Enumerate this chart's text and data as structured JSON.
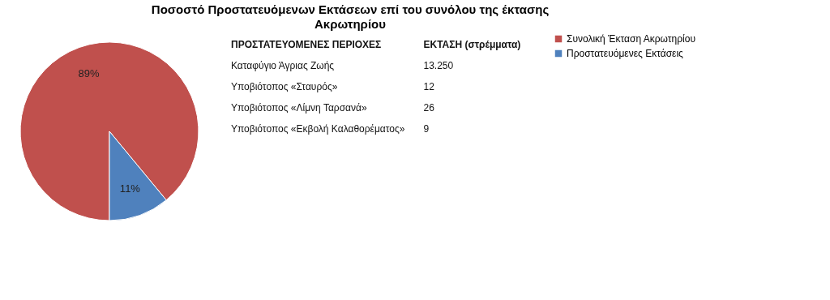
{
  "chart_data": {
    "type": "pie",
    "title": "Ποσοστό Προστατευόμενων Εκτάσεων επί του συνόλου της έκτασης",
    "subtitle": "Ακρωτηρίου",
    "categories": [
      "Συνολική Έκταση Ακρωτηρίου",
      "Προστατευόμενες Εκτάσεις"
    ],
    "values": [
      89,
      11
    ],
    "colors": [
      "#c0504d",
      "#4f81bd"
    ],
    "value_labels": [
      "89%",
      "11%"
    ],
    "legend": "right",
    "annotations": [
      "ΠΡΟΣΤΑΤΕΥΟΜΕΝΕΣ ΠΕΡΙΟΧΕΣ",
      "ΕΚΤΑΣΗ (στρέμματα)",
      "Καταφύγιο Άγριας Ζωής",
      "13.250",
      "Υποβιότοπος «Σταυρός»",
      "12",
      "Υποβιότοπος «Λίμνη Ταρσανά»",
      "26",
      "Υποβιότοπος «Εκβολή Καλαθορέματος»",
      "9"
    ]
  }
}
